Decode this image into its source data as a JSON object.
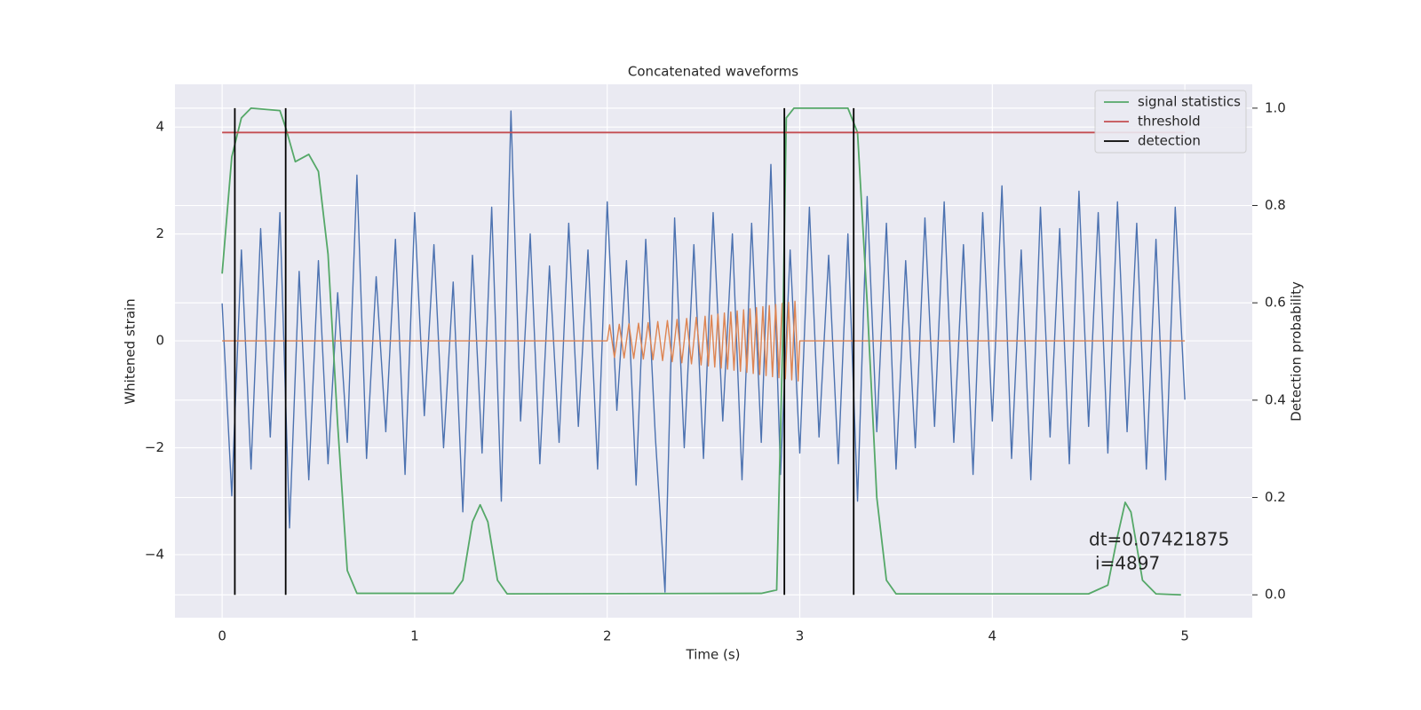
{
  "chart_data": {
    "type": "line",
    "title": "Concatenated waveforms",
    "xlabel": "Time (s)",
    "ylabel": "Whitened strain",
    "y2label": "Detection probability",
    "xlim": [
      -0.245,
      5.35
    ],
    "ylim": [
      -5.18,
      4.8
    ],
    "y2lim": [
      -0.047,
      1.049
    ],
    "xticks": [
      0,
      1,
      2,
      3,
      4,
      5
    ],
    "yticks": [
      {
        "value": -4,
        "label": "−4"
      },
      {
        "value": -2,
        "label": "−2"
      },
      0,
      2,
      4
    ],
    "y2ticks": [
      {
        "value": 0,
        "label": "0.0"
      },
      0.2,
      0.4,
      0.6,
      0.8,
      {
        "value": 1,
        "label": "1.0"
      }
    ],
    "grid": true,
    "legend": "upper right",
    "annotations": [
      "dt=0.07421875",
      "i=4897"
    ],
    "series": [
      {
        "color": "#4c72b0",
        "x": [
          0,
          0.05,
          0.1,
          0.15,
          0.2,
          0.25,
          0.3,
          0.35,
          0.4,
          0.45,
          0.5,
          0.55,
          0.6,
          0.65,
          0.7,
          0.75,
          0.8,
          0.85,
          0.9,
          0.95,
          1,
          1.05,
          1.1,
          1.15,
          1.2,
          1.25,
          1.3,
          1.35,
          1.4,
          1.45,
          1.5,
          1.55,
          1.6,
          1.65,
          1.7,
          1.75,
          1.8,
          1.85,
          1.9,
          1.95,
          2,
          2.05,
          2.1,
          2.15,
          2.2,
          2.25,
          2.3,
          2.35,
          2.4,
          2.45,
          2.5,
          2.55,
          2.6,
          2.65,
          2.7,
          2.75,
          2.8,
          2.85,
          2.9,
          2.95,
          3,
          3.05,
          3.1,
          3.15,
          3.2,
          3.25,
          3.3,
          3.35,
          3.4,
          3.45,
          3.5,
          3.55,
          3.6,
          3.65,
          3.7,
          3.75,
          3.8,
          3.85,
          3.9,
          3.95,
          4,
          4.05,
          4.1,
          4.15,
          4.2,
          4.25,
          4.3,
          4.35,
          4.4,
          4.45,
          4.5,
          4.55,
          4.6,
          4.65,
          4.7,
          4.75,
          4.8,
          4.85,
          4.9,
          4.95,
          5
        ],
        "values": [
          0.7,
          -2.9,
          1.7,
          -2.4,
          2.1,
          -1.8,
          2.4,
          -3.5,
          1.3,
          -2.6,
          1.5,
          -2.3,
          0.9,
          -1.9,
          3.1,
          -2.2,
          1.2,
          -1.7,
          1.9,
          -2.5,
          2.4,
          -1.4,
          1.8,
          -2.0,
          1.1,
          -3.2,
          1.6,
          -2.1,
          2.5,
          -3.0,
          4.3,
          -1.5,
          2.0,
          -2.3,
          1.4,
          -1.9,
          2.2,
          -1.6,
          1.7,
          -2.4,
          2.6,
          -1.3,
          1.5,
          -2.7,
          1.9,
          -1.8,
          -4.7,
          2.3,
          -2.0,
          1.8,
          -2.2,
          2.4,
          -1.5,
          2.0,
          -2.6,
          2.2,
          -1.9,
          3.3,
          -2.5,
          1.7,
          -2.1,
          2.5,
          -1.8,
          1.6,
          -2.3,
          2.0,
          -3.0,
          2.7,
          -1.7,
          2.2,
          -2.4,
          1.5,
          -2.0,
          2.3,
          -1.6,
          2.6,
          -1.9,
          1.8,
          -2.5,
          2.4,
          -1.5,
          2.9,
          -2.2,
          1.7,
          -2.6,
          2.5,
          -1.8,
          2.1,
          -2.3,
          2.8,
          -1.6,
          2.4,
          -2.1,
          2.6,
          -1.7,
          2.2,
          -2.4,
          1.9,
          -2.6,
          2.5,
          -1.1
        ]
      },
      {
        "color": "#dd8452",
        "x": [
          0,
          2,
          2.0125,
          2.0375,
          2.0625,
          2.0875,
          2.1125,
          2.1375,
          2.1625,
          2.1875,
          2.2125,
          2.2375,
          2.2625,
          2.2875,
          2.3125,
          2.3375,
          2.3625,
          2.3875,
          2.4125,
          2.4375,
          2.4625,
          2.4875,
          2.5083,
          2.525,
          2.5417,
          2.5583,
          2.575,
          2.5917,
          2.6083,
          2.625,
          2.6417,
          2.6583,
          2.675,
          2.6917,
          2.7083,
          2.725,
          2.7417,
          2.7583,
          2.775,
          2.7917,
          2.8083,
          2.825,
          2.8417,
          2.8583,
          2.875,
          2.8917,
          2.9083,
          2.925,
          2.9417,
          2.9583,
          2.975,
          2.9917,
          3,
          5
        ],
        "values": [
          0,
          0,
          0.3,
          -0.31,
          0.31,
          -0.32,
          0.32,
          -0.33,
          0.33,
          -0.34,
          0.34,
          -0.35,
          0.36,
          -0.37,
          0.38,
          -0.39,
          0.4,
          -0.41,
          0.42,
          -0.43,
          0.44,
          -0.45,
          0.46,
          -0.47,
          0.48,
          -0.49,
          0.5,
          -0.51,
          0.52,
          -0.53,
          0.54,
          -0.55,
          0.56,
          -0.57,
          0.58,
          -0.59,
          0.6,
          -0.61,
          0.62,
          -0.63,
          0.64,
          -0.65,
          0.66,
          -0.67,
          0.68,
          -0.69,
          0.7,
          -0.71,
          0.72,
          -0.73,
          0.74,
          -0.75,
          0,
          0
        ]
      },
      {
        "name": "signal statistics",
        "color": "#55a868",
        "axis": "y2",
        "x": [
          0,
          0.05,
          0.1,
          0.15,
          0.3,
          0.33,
          0.38,
          0.45,
          0.5,
          0.55,
          0.6,
          0.65,
          0.7,
          1.2,
          1.25,
          1.3,
          1.34,
          1.38,
          1.43,
          1.48,
          2.8,
          2.88,
          2.91,
          2.93,
          2.97,
          3.25,
          3.3,
          3.35,
          3.4,
          3.45,
          3.5,
          4.5,
          4.6,
          4.65,
          4.69,
          4.72,
          4.78,
          4.85,
          4.98
        ],
        "values": [
          0.66,
          0.9,
          0.98,
          1.0,
          0.995,
          0.96,
          0.89,
          0.905,
          0.87,
          0.7,
          0.35,
          0.05,
          0.003,
          0.003,
          0.03,
          0.15,
          0.185,
          0.15,
          0.03,
          0.002,
          0.003,
          0.01,
          0.5,
          0.98,
          1.0,
          1.0,
          0.95,
          0.6,
          0.2,
          0.03,
          0.002,
          0.002,
          0.02,
          0.12,
          0.19,
          0.17,
          0.03,
          0.002,
          0.0
        ]
      },
      {
        "name": "threshold",
        "color": "#c44e52",
        "axis": "y2",
        "x": [
          0,
          5
        ],
        "values": [
          0.95,
          0.95
        ]
      },
      {
        "name": "detection",
        "color": "#000000",
        "axis": "y2",
        "type": "vline",
        "x": [
          0.066,
          0.33,
          2.92,
          3.28
        ]
      }
    ]
  }
}
